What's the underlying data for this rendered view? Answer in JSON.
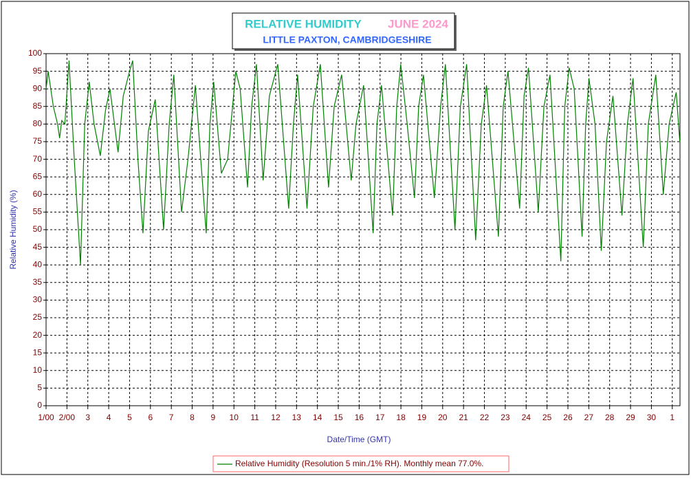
{
  "chart_data": {
    "type": "line",
    "title": "RELATIVE HUMIDITY",
    "title_date": "JUNE 2024",
    "subtitle": "LITTLE PAXTON, CAMBRIDGESHIRE",
    "y_label": "Relative Humidity (%)",
    "x_label": "Date/Time (GMT)",
    "grid": true,
    "legend": "bottom",
    "xlim": [
      1,
      31.37
    ],
    "xticks": [
      {
        "value": 1,
        "label": "1/00"
      },
      {
        "value": 2,
        "label": "2/00"
      },
      3,
      4,
      5,
      6,
      7,
      8,
      9,
      10,
      11,
      12,
      13,
      14,
      15,
      16,
      17,
      18,
      19,
      20,
      21,
      22,
      23,
      24,
      25,
      26,
      27,
      28,
      29,
      30,
      {
        "value": 31,
        "label": "1"
      }
    ],
    "ylim": [
      0,
      100
    ],
    "yticks": [
      0,
      5,
      10,
      15,
      20,
      25,
      30,
      35,
      40,
      45,
      50,
      55,
      60,
      65,
      70,
      75,
      80,
      85,
      90,
      95,
      100
    ],
    "x": [
      1.0,
      1.1,
      1.35,
      1.55,
      1.65,
      1.75,
      1.9,
      2.1,
      2.35,
      2.65,
      2.85,
      3.07,
      3.3,
      3.6,
      3.85,
      4.06,
      4.45,
      4.7,
      5.0,
      5.15,
      5.4,
      5.64,
      5.9,
      6.23,
      6.63,
      6.9,
      7.12,
      7.49,
      7.8,
      8.15,
      8.67,
      8.85,
      9.03,
      9.4,
      9.7,
      10.09,
      10.3,
      10.65,
      10.85,
      11.08,
      11.4,
      11.7,
      12.1,
      12.62,
      12.85,
      13.05,
      13.5,
      13.8,
      14.14,
      14.53,
      14.8,
      15.16,
      15.62,
      15.85,
      16.21,
      16.67,
      16.85,
      17.07,
      17.6,
      17.8,
      17.99,
      18.3,
      18.65,
      18.85,
      19.08,
      19.6,
      19.9,
      20.13,
      20.59,
      20.85,
      21.15,
      21.58,
      21.85,
      22.1,
      22.67,
      22.9,
      23.13,
      23.69,
      23.9,
      24.11,
      24.58,
      24.85,
      25.14,
      25.66,
      25.85,
      26.06,
      26.3,
      26.68,
      26.85,
      27.01,
      27.3,
      27.6,
      27.85,
      28.16,
      28.59,
      28.85,
      29.12,
      29.61,
      29.85,
      30.21,
      30.57,
      30.85,
      31.19,
      31.36
    ],
    "series": [
      {
        "name": "Relative Humidity (Resolution 5 min./1% RH). Monthly mean 77.0%.",
        "color": "#008000",
        "values": [
          90,
          95,
          85,
          80,
          76,
          81,
          80,
          98,
          70,
          40,
          80,
          92,
          80,
          71,
          84,
          90,
          72,
          88,
          95,
          98,
          70,
          49,
          78,
          87,
          50,
          80,
          94,
          55,
          70,
          91,
          49,
          80,
          92,
          66,
          70,
          95,
          90,
          62,
          85,
          97,
          64,
          88,
          97,
          56,
          80,
          94,
          56,
          85,
          97,
          62,
          85,
          94,
          64,
          80,
          91,
          49,
          80,
          91,
          54,
          85,
          97,
          80,
          59,
          85,
          94,
          59,
          85,
          97,
          50,
          85,
          97,
          47,
          80,
          91,
          48,
          85,
          95,
          56,
          88,
          96,
          55,
          85,
          94,
          41,
          85,
          96,
          90,
          48,
          80,
          93,
          80,
          44,
          75,
          88,
          54,
          80,
          93,
          45,
          80,
          94,
          60,
          80,
          89,
          75
        ]
      }
    ]
  }
}
